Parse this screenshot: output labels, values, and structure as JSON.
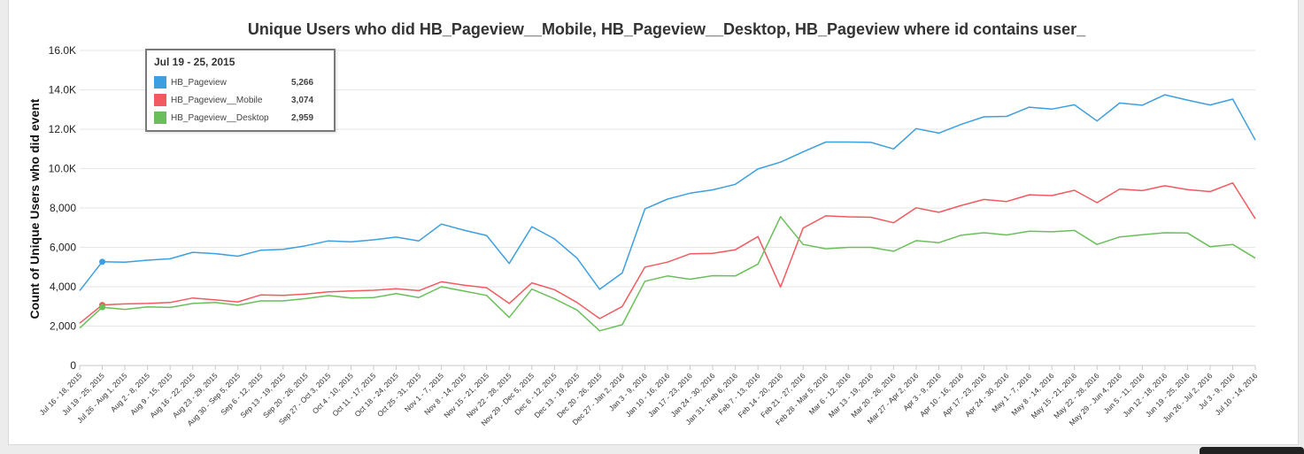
{
  "chart_data": {
    "type": "line",
    "title": "Unique Users who did HB_Pageview__Mobile, HB_Pageview__Desktop, HB_Pageview where id contains user_",
    "xlabel": "",
    "ylabel": "Count of Unique Users who did event",
    "ylim": [
      0,
      16000
    ],
    "yticks": [
      "0",
      "2,000",
      "4,000",
      "6,000",
      "8,000",
      "10.0K",
      "12.0K",
      "14.0K",
      "16.0K"
    ],
    "grid": true,
    "categories": [
      "Jul 16 - 18, 2015",
      "Jul 19 - 25, 2015",
      "Jul 26 - Aug 1, 2015",
      "Aug 2 - 8, 2015",
      "Aug 9 - 15, 2015",
      "Aug 16 - 22, 2015",
      "Aug 23 - 29, 2015",
      "Aug 30 - Sep 5, 2015",
      "Sep 6 - 12, 2015",
      "Sep 13 - 19, 2015",
      "Sep 20 - 26, 2015",
      "Sep 27 - Oct 3, 2015",
      "Oct 4 - 10, 2015",
      "Oct 11 - 17, 2015",
      "Oct 18 - 24, 2015",
      "Oct 25 - 31, 2015",
      "Nov 1 - 7, 2015",
      "Nov 8 - 14, 2015",
      "Nov 15 - 21, 2015",
      "Nov 22 - 28, 2015",
      "Nov 29 - Dec 5, 2015",
      "Dec 6 - 12, 2015",
      "Dec 13 - 19, 2015",
      "Dec 20 - 26, 2015",
      "Dec 27 - Jan 2, 2016",
      "Jan 3 - 9, 2016",
      "Jan 10 - 16, 2016",
      "Jan 17 - 23, 2016",
      "Jan 24 - 30, 2016",
      "Jan 31 - Feb 6, 2016",
      "Feb 7 - 13, 2016",
      "Feb 14 - 20, 2016",
      "Feb 21 - 27, 2016",
      "Feb 28 - Mar 5, 2016",
      "Mar 6 - 12, 2016",
      "Mar 13 - 19, 2016",
      "Mar 20 - 26, 2016",
      "Mar 27 - Apr 2, 2016",
      "Apr 3 - 9, 2016",
      "Apr 10 - 16, 2016",
      "Apr 17 - 23, 2016",
      "Apr 24 - 30, 2016",
      "May 1 - 7, 2016",
      "May 8 - 14, 2016",
      "May 15 - 21, 2016",
      "May 22 - 28, 2016",
      "May 29 - Jun 4, 2016",
      "Jun 5 - 11, 2016",
      "Jun 12 - 18, 2016",
      "Jun 19 - 25, 2016",
      "Jun 26 - Jul 2, 2016",
      "Jul 3 - 9, 2016",
      "Jul 10 - 14, 2016"
    ],
    "series": [
      {
        "name": "HB_Pageview",
        "color": "#3d9fe0",
        "values": [
          3800,
          5266,
          5250,
          5350,
          5420,
          5750,
          5680,
          5550,
          5850,
          5900,
          6080,
          6330,
          6280,
          6380,
          6520,
          6330,
          7180,
          6870,
          6600,
          5180,
          7050,
          6430,
          5450,
          3870,
          4700,
          7950,
          8450,
          8750,
          8920,
          9200,
          9980,
          10330,
          10850,
          11350,
          11350,
          11330,
          11000,
          12030,
          11800,
          12250,
          12630,
          12650,
          13120,
          13020,
          13240,
          12420,
          13330,
          13220,
          13750,
          13480,
          13230,
          13530,
          11450
        ]
      },
      {
        "name": "HB_Pageview__Mobile",
        "color": "#f25a5f",
        "values": [
          2150,
          3074,
          3130,
          3150,
          3200,
          3430,
          3330,
          3230,
          3580,
          3560,
          3630,
          3740,
          3790,
          3820,
          3900,
          3800,
          4250,
          4080,
          3950,
          3150,
          4200,
          3850,
          3200,
          2380,
          3000,
          5000,
          5250,
          5670,
          5700,
          5880,
          6550,
          3980,
          6980,
          7600,
          7550,
          7530,
          7250,
          8010,
          7780,
          8130,
          8430,
          8330,
          8670,
          8630,
          8900,
          8270,
          8960,
          8880,
          9130,
          8930,
          8830,
          9270,
          7450
        ]
      },
      {
        "name": "HB_Pageview__Desktop",
        "color": "#6abf5a",
        "values": [
          1900,
          2959,
          2850,
          2980,
          2950,
          3150,
          3200,
          3060,
          3280,
          3280,
          3400,
          3550,
          3430,
          3450,
          3650,
          3450,
          4000,
          3780,
          3560,
          2440,
          3880,
          3390,
          2820,
          1760,
          2070,
          4280,
          4550,
          4380,
          4560,
          4550,
          5150,
          7560,
          6150,
          5930,
          6000,
          6000,
          5800,
          6340,
          6240,
          6620,
          6740,
          6630,
          6820,
          6790,
          6860,
          6150,
          6530,
          6640,
          6740,
          6730,
          6030,
          6150,
          5450
        ]
      }
    ],
    "tooltip": {
      "title": "Jul 19 - 25, 2015",
      "rows": [
        {
          "name": "HB_Pageview",
          "value": "5,266",
          "color": "#3d9fe0"
        },
        {
          "name": "HB_Pageview__Mobile",
          "value": "3,074",
          "color": "#f25a5f"
        },
        {
          "name": "HB_Pageview__Desktop",
          "value": "2,959",
          "color": "#6abf5a"
        }
      ],
      "highlight_index": 1
    }
  }
}
